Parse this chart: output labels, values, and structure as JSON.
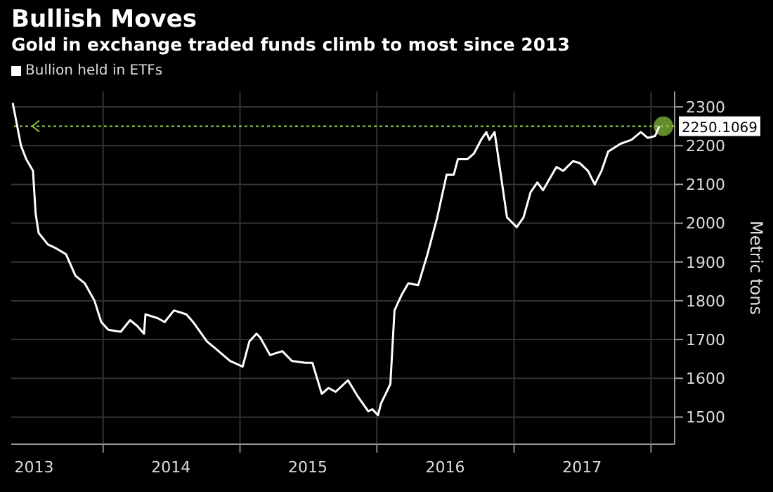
{
  "chart_data": {
    "type": "line",
    "title": "Bullish Moves",
    "subtitle": "Gold in exchange traded funds climb to most since 2013",
    "ylabel": "Metric tons",
    "legend": "top left",
    "grid": true,
    "x": [
      "2013-05-05",
      "2013-05-27",
      "2013-06-10",
      "2013-06-28",
      "2013-07-05",
      "2013-07-13",
      "2013-08-07",
      "2013-08-29",
      "2013-09-24",
      "2013-10-19",
      "2013-11-13",
      "2013-12-09",
      "2013-12-27",
      "2014-01-15",
      "2014-02-17",
      "2014-03-14",
      "2014-04-02",
      "2014-04-20",
      "2014-04-24",
      "2014-05-27",
      "2014-06-14",
      "2014-07-09",
      "2014-08-11",
      "2014-08-29",
      "2014-10-05",
      "2014-10-30",
      "2014-12-05",
      "2015-01-08",
      "2015-01-26",
      "2015-02-14",
      "2015-02-24",
      "2015-03-22",
      "2015-04-24",
      "2015-05-19",
      "2015-06-25",
      "2015-07-13",
      "2015-08-07",
      "2015-08-25",
      "2015-09-13",
      "2015-10-16",
      "2015-11-10",
      "2015-12-09",
      "2015-12-20",
      "2016-01-04",
      "2016-01-12",
      "2016-02-06",
      "2016-02-17",
      "2016-03-07",
      "2016-03-25",
      "2016-04-20",
      "2016-05-15",
      "2016-06-10",
      "2016-07-05",
      "2016-07-24",
      "2016-08-04",
      "2016-08-29",
      "2016-09-16",
      "2016-10-05",
      "2016-10-19",
      "2016-10-27",
      "2016-11-10",
      "2016-11-25",
      "2016-12-13",
      "2017-01-08",
      "2017-01-26",
      "2017-02-14",
      "2017-03-04",
      "2017-03-19",
      "2017-04-06",
      "2017-04-24",
      "2017-05-12",
      "2017-06-07",
      "2017-06-25",
      "2017-07-17",
      "2017-08-04",
      "2017-08-22",
      "2017-09-09",
      "2017-10-12",
      "2017-11-10",
      "2017-12-05",
      "2017-12-23",
      "2018-01-12",
      "2018-01-23"
    ],
    "series": [
      {
        "name": "Bullion held in ETFs",
        "color": "#ffffff",
        "values": [
          2310,
          2200,
          2165,
          2135,
          2025,
          1975,
          1945,
          1935,
          1920,
          1865,
          1845,
          1800,
          1745,
          1725,
          1720,
          1750,
          1735,
          1715,
          1765,
          1755,
          1745,
          1775,
          1765,
          1745,
          1695,
          1675,
          1645,
          1630,
          1695,
          1715,
          1705,
          1660,
          1670,
          1645,
          1640,
          1640,
          1560,
          1575,
          1565,
          1595,
          1555,
          1515,
          1520,
          1505,
          1535,
          1585,
          1775,
          1815,
          1845,
          1840,
          1920,
          2015,
          2125,
          2125,
          2165,
          2165,
          2180,
          2215,
          2235,
          2215,
          2235,
          2135,
          2015,
          1990,
          2015,
          2080,
          2105,
          2085,
          2115,
          2145,
          2135,
          2160,
          2155,
          2135,
          2100,
          2135,
          2185,
          2205,
          2215,
          2235,
          2220,
          2225,
          2250
        ]
      }
    ],
    "xlim": [
      "2013-05-01",
      "2018-03-05"
    ],
    "xticks": [
      {
        "value": "2013-07-01",
        "label": "2013"
      },
      {
        "value": "2014-01-01",
        "label": null
      },
      {
        "value": "2014-07-01",
        "label": "2014"
      },
      {
        "value": "2015-01-01",
        "label": null
      },
      {
        "value": "2015-07-01",
        "label": "2015"
      },
      {
        "value": "2016-01-01",
        "label": null
      },
      {
        "value": "2016-07-01",
        "label": "2016"
      },
      {
        "value": "2017-01-01",
        "label": null
      },
      {
        "value": "2017-07-01",
        "label": "2017"
      },
      {
        "value": "2018-01-01",
        "label": null
      }
    ],
    "ylim": [
      1430,
      2340
    ],
    "yticks": [
      1500,
      1600,
      1700,
      1800,
      1900,
      2000,
      2100,
      2200,
      2300
    ],
    "ref_lines": [
      {
        "axis": "y",
        "value": 2250.1069,
        "label": "2250.1069",
        "color": "#8dc63f",
        "line_style": "dotted"
      }
    ]
  }
}
